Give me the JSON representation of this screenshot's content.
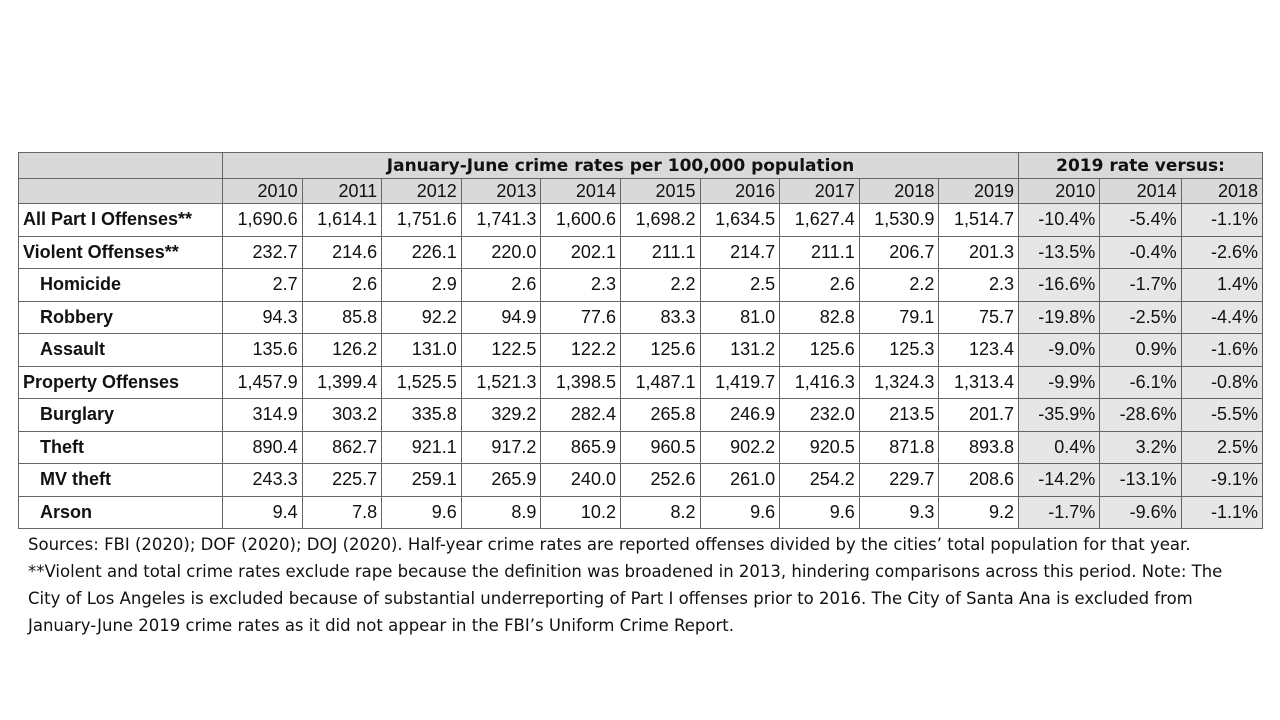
{
  "header": {
    "group_main": "January-June crime rates per 100,000 population",
    "group_compare": "2019 rate versus:"
  },
  "years": [
    "2010",
    "2011",
    "2012",
    "2013",
    "2014",
    "2015",
    "2016",
    "2017",
    "2018",
    "2019"
  ],
  "compare_years": [
    "2010",
    "2014",
    "2018"
  ],
  "rows": [
    {
      "label": "All Part I Offenses**",
      "sub": false,
      "values": [
        "1,690.6",
        "1,614.1",
        "1,751.6",
        "1,741.3",
        "1,600.6",
        "1,698.2",
        "1,634.5",
        "1,627.4",
        "1,530.9",
        "1,514.7"
      ],
      "compare": [
        "-10.4%",
        "-5.4%",
        "-1.1%"
      ]
    },
    {
      "label": "Violent Offenses**",
      "sub": false,
      "values": [
        "232.7",
        "214.6",
        "226.1",
        "220.0",
        "202.1",
        "211.1",
        "214.7",
        "211.1",
        "206.7",
        "201.3"
      ],
      "compare": [
        "-13.5%",
        "-0.4%",
        "-2.6%"
      ]
    },
    {
      "label": "Homicide",
      "sub": true,
      "values": [
        "2.7",
        "2.6",
        "2.9",
        "2.6",
        "2.3",
        "2.2",
        "2.5",
        "2.6",
        "2.2",
        "2.3"
      ],
      "compare": [
        "-16.6%",
        "-1.7%",
        "1.4%"
      ]
    },
    {
      "label": "Robbery",
      "sub": true,
      "values": [
        "94.3",
        "85.8",
        "92.2",
        "94.9",
        "77.6",
        "83.3",
        "81.0",
        "82.8",
        "79.1",
        "75.7"
      ],
      "compare": [
        "-19.8%",
        "-2.5%",
        "-4.4%"
      ]
    },
    {
      "label": "Assault",
      "sub": true,
      "values": [
        "135.6",
        "126.2",
        "131.0",
        "122.5",
        "122.2",
        "125.6",
        "131.2",
        "125.6",
        "125.3",
        "123.4"
      ],
      "compare": [
        "-9.0%",
        "0.9%",
        "-1.6%"
      ]
    },
    {
      "label": "Property Offenses",
      "sub": false,
      "values": [
        "1,457.9",
        "1,399.4",
        "1,525.5",
        "1,521.3",
        "1,398.5",
        "1,487.1",
        "1,419.7",
        "1,416.3",
        "1,324.3",
        "1,313.4"
      ],
      "compare": [
        "-9.9%",
        "-6.1%",
        "-0.8%"
      ]
    },
    {
      "label": "Burglary",
      "sub": true,
      "values": [
        "314.9",
        "303.2",
        "335.8",
        "329.2",
        "282.4",
        "265.8",
        "246.9",
        "232.0",
        "213.5",
        "201.7"
      ],
      "compare": [
        "-35.9%",
        "-28.6%",
        "-5.5%"
      ]
    },
    {
      "label": "Theft",
      "sub": true,
      "values": [
        "890.4",
        "862.7",
        "921.1",
        "917.2",
        "865.9",
        "960.5",
        "902.2",
        "920.5",
        "871.8",
        "893.8"
      ],
      "compare": [
        "0.4%",
        "3.2%",
        "2.5%"
      ]
    },
    {
      "label": "MV theft",
      "sub": true,
      "values": [
        "243.3",
        "225.7",
        "259.1",
        "265.9",
        "240.0",
        "252.6",
        "261.0",
        "254.2",
        "229.7",
        "208.6"
      ],
      "compare": [
        "-14.2%",
        "-13.1%",
        "-9.1%"
      ]
    },
    {
      "label": "Arson",
      "sub": true,
      "values": [
        "9.4",
        "7.8",
        "9.6",
        "8.9",
        "10.2",
        "8.2",
        "9.6",
        "9.6",
        "9.3",
        "9.2"
      ],
      "compare": [
        "-1.7%",
        "-9.6%",
        "-1.1%"
      ]
    }
  ],
  "caption": "Sources: FBI (2020); DOF (2020); DOJ (2020). Half-year crime rates are reported offenses divided by the cities’ total population for that year. **Violent and total crime rates exclude rape because the definition was broadened in 2013, hindering comparisons across this period. Note: The City of Los Angeles is excluded because of substantial underreporting of Part I offenses prior to 2016. The City of Santa Ana is excluded from January-June 2019 crime rates as it did not appear in the FBI’s Uniform Crime Report."
}
